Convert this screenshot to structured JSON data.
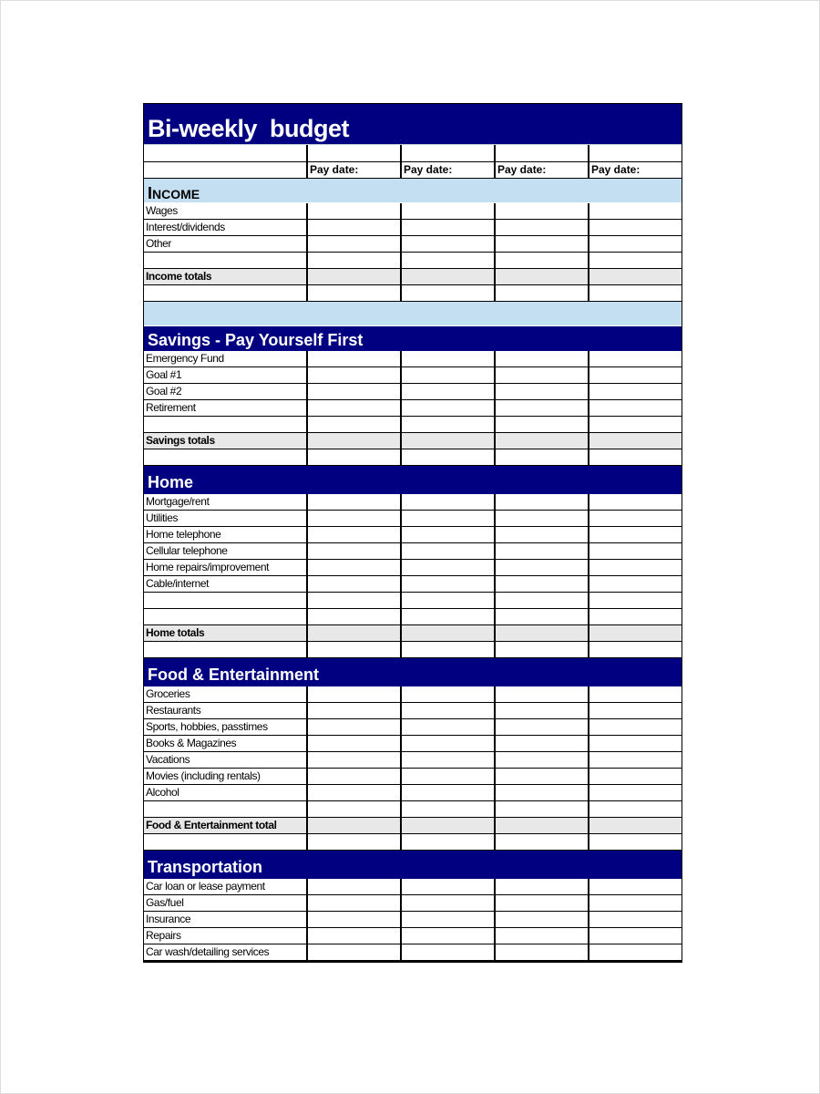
{
  "title": "Bi-weekly  budget",
  "pay_date_label": "Pay date:",
  "sections": [
    {
      "kind": "band",
      "title": "Income",
      "rows": [
        {
          "label": "Wages"
        },
        {
          "label": "Interest/dividends"
        },
        {
          "label": "Other"
        },
        {
          "label": ""
        },
        {
          "label": "Income totals",
          "total": true
        },
        {
          "label": ""
        }
      ]
    },
    {
      "kind": "spacer"
    },
    {
      "kind": "navy",
      "short": true,
      "title": "Savings - Pay Yourself First",
      "rows": [
        {
          "label": "Emergency Fund"
        },
        {
          "label": "Goal #1"
        },
        {
          "label": "Goal #2"
        },
        {
          "label": "Retirement"
        },
        {
          "label": ""
        },
        {
          "label": "Savings totals",
          "total": true
        },
        {
          "label": ""
        }
      ]
    },
    {
      "kind": "navy",
      "title": "Home",
      "rows": [
        {
          "label": "Mortgage/rent"
        },
        {
          "label": "Utilities"
        },
        {
          "label": "Home telephone"
        },
        {
          "label": "Cellular telephone"
        },
        {
          "label": "Home repairs/improvement"
        },
        {
          "label": "Cable/internet"
        },
        {
          "label": ""
        },
        {
          "label": ""
        },
        {
          "label": "Home totals",
          "total": true
        },
        {
          "label": ""
        }
      ]
    },
    {
      "kind": "navy",
      "title": "Food & Entertainment",
      "rows": [
        {
          "label": "Groceries"
        },
        {
          "label": "Restaurants"
        },
        {
          "label": "Sports, hobbies, passtimes"
        },
        {
          "label": "Books & Magazines"
        },
        {
          "label": "Vacations"
        },
        {
          "label": "Movies (including rentals)"
        },
        {
          "label": "Alcohol"
        },
        {
          "label": ""
        },
        {
          "label": "Food & Entertainment total",
          "total": true
        },
        {
          "label": ""
        }
      ]
    },
    {
      "kind": "navy",
      "title": "Transportation",
      "rows": [
        {
          "label": "Car loan or lease payment"
        },
        {
          "label": "Gas/fuel"
        },
        {
          "label": "Insurance"
        },
        {
          "label": "Repairs"
        },
        {
          "label": "Car wash/detailing services"
        }
      ]
    }
  ],
  "colors": {
    "header_navy": "#000080",
    "band_light_blue": "#c5dff2",
    "totals_gray": "#e8e8e8"
  }
}
